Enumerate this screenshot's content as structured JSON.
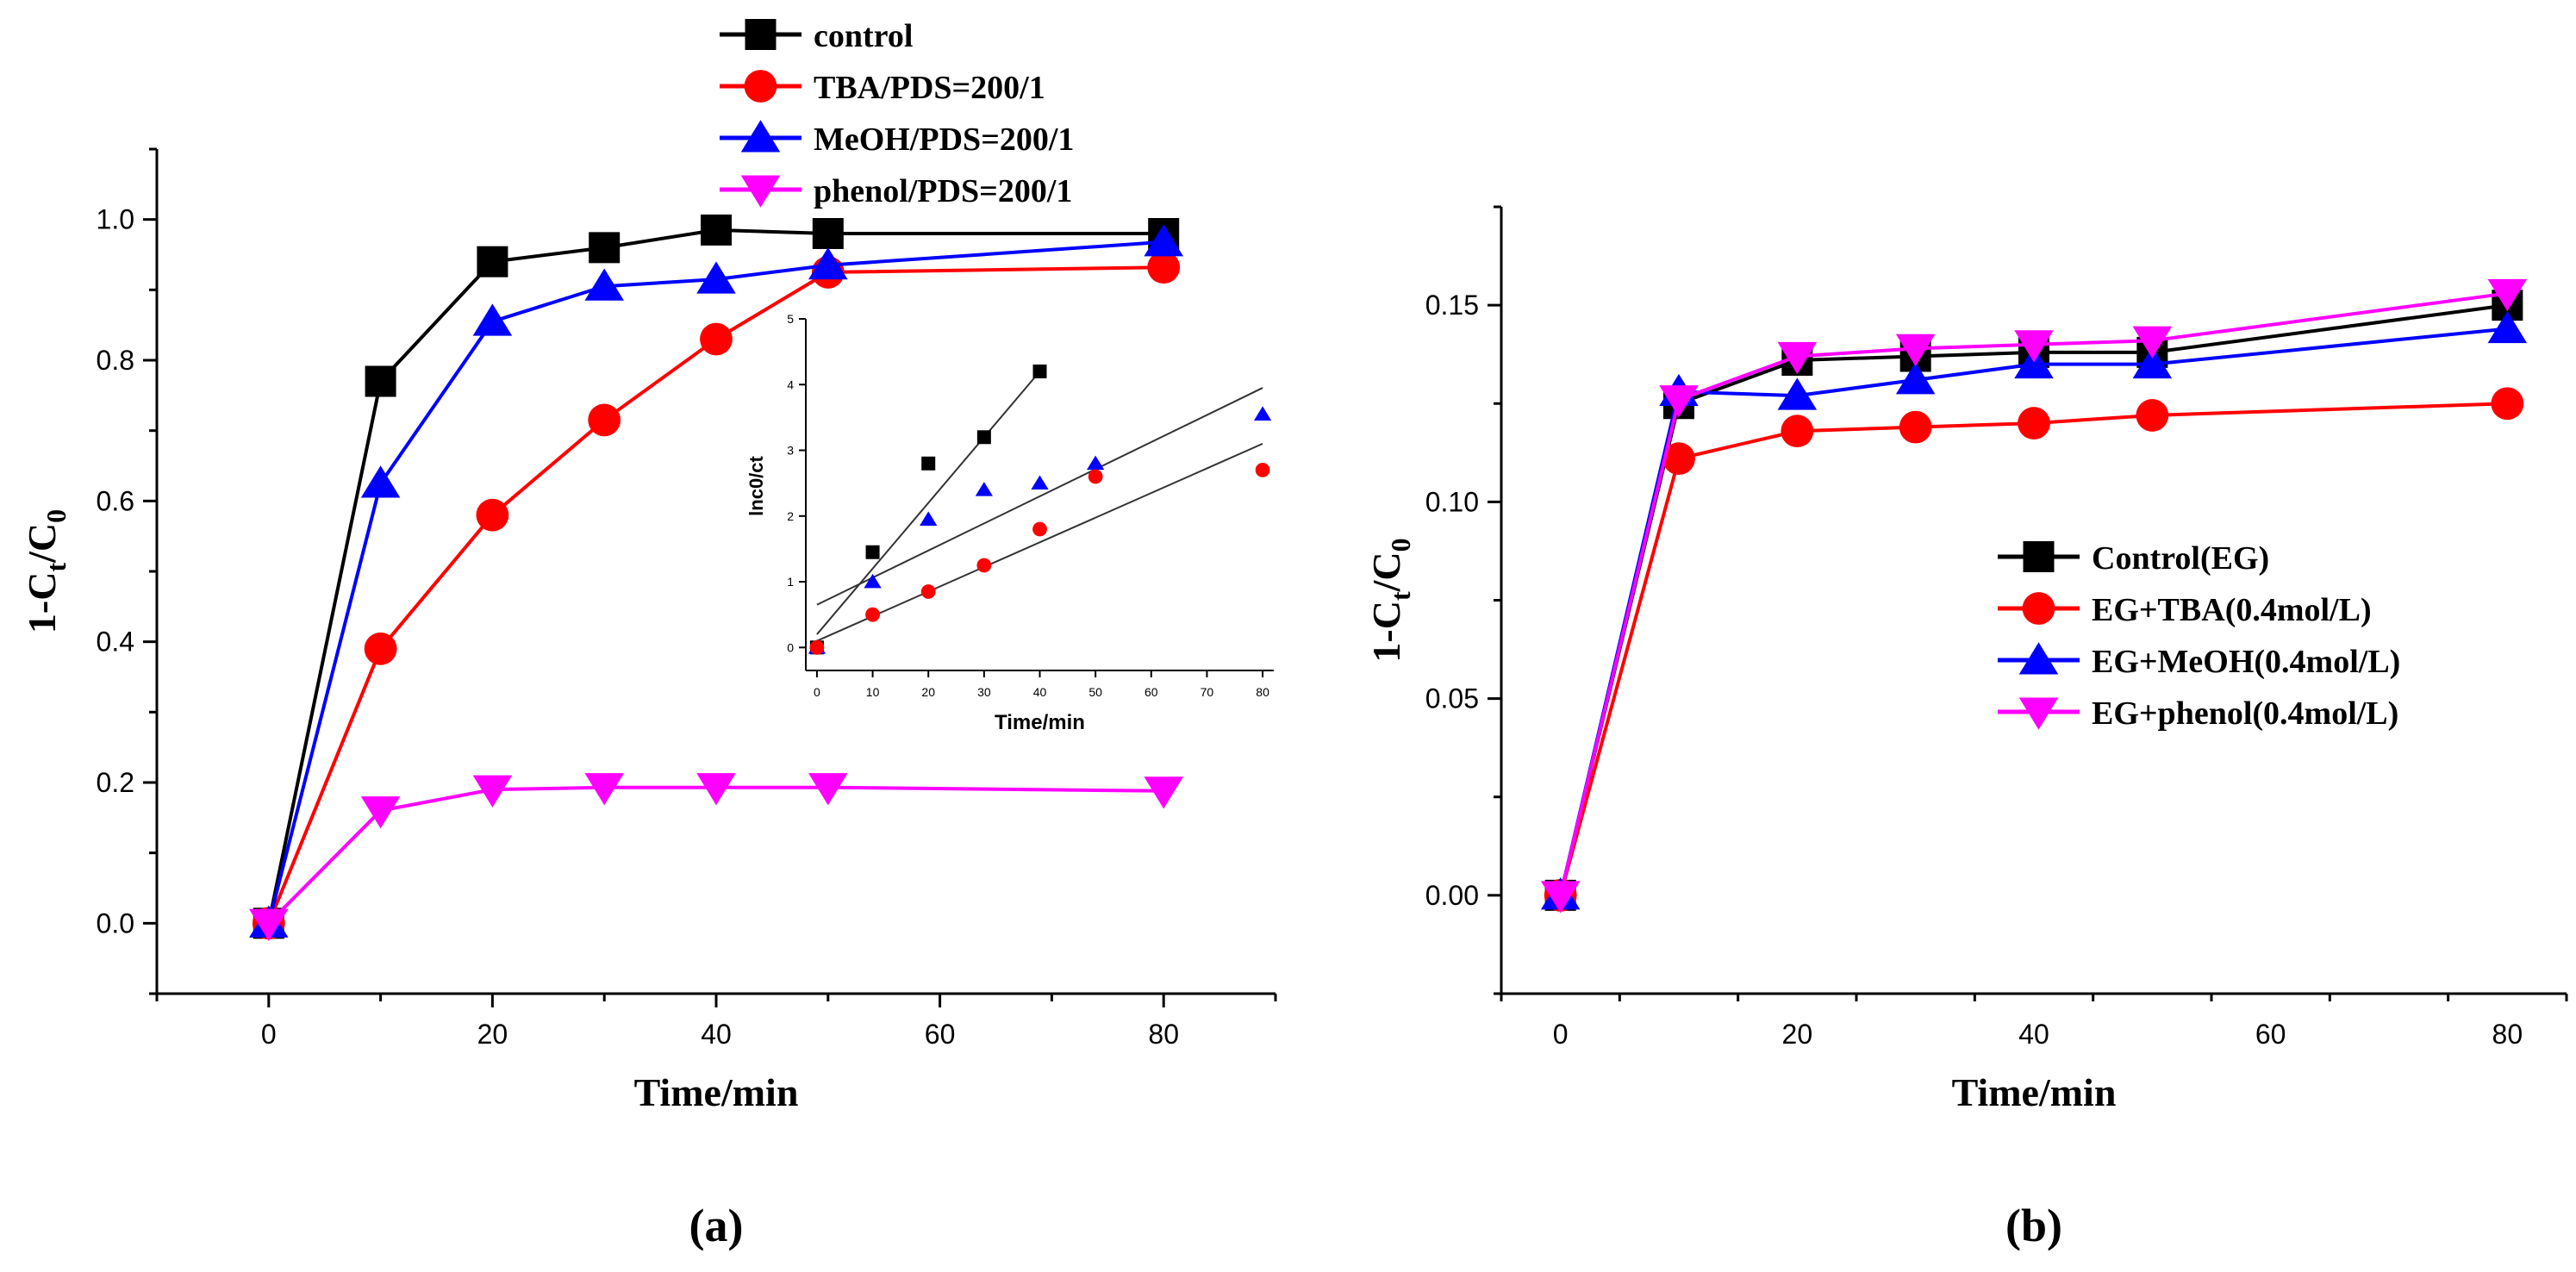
{
  "chart_data": [
    {
      "type": "line",
      "panel_label": "(a)",
      "xlabel": "Time/min",
      "ylabel_parts": {
        "a": "1-C",
        "b": "t",
        "c": "/C",
        "d": "0"
      },
      "xlim": [
        -10,
        90
      ],
      "ylim": [
        -0.1,
        1.1
      ],
      "xticks": [
        0,
        20,
        40,
        60,
        80
      ],
      "yticks": [
        0.0,
        0.2,
        0.4,
        0.6,
        0.8,
        1.0
      ],
      "ytick_labels": [
        "0.0",
        "0.2",
        "0.4",
        "0.6",
        "0.8",
        "1.0"
      ],
      "legend_position": "top-center",
      "series": [
        {
          "name": "control",
          "color": "#000000",
          "marker": "square",
          "x": [
            0,
            10,
            20,
            30,
            40,
            50,
            80
          ],
          "y": [
            0.0,
            0.77,
            0.94,
            0.96,
            0.985,
            0.98,
            0.98
          ]
        },
        {
          "name": "TBA/PDS=200/1",
          "color": "#ff0000",
          "marker": "circle",
          "x": [
            0,
            10,
            20,
            30,
            40,
            50,
            80
          ],
          "y": [
            0.0,
            0.39,
            0.58,
            0.715,
            0.83,
            0.925,
            0.932
          ]
        },
        {
          "name": "MeOH/PDS=200/1",
          "color": "#0000ff",
          "marker": "triangle-up",
          "x": [
            0,
            10,
            20,
            30,
            40,
            50,
            80
          ],
          "y": [
            0.0,
            0.625,
            0.855,
            0.905,
            0.915,
            0.935,
            0.968
          ]
        },
        {
          "name": "phenol/PDS=200/1",
          "color": "#ff00ff",
          "marker": "triangle-down",
          "x": [
            0,
            10,
            20,
            30,
            40,
            50,
            80
          ],
          "y": [
            0.0,
            0.16,
            0.19,
            0.193,
            0.193,
            0.193,
            0.188
          ]
        }
      ],
      "inset": {
        "type": "scatter",
        "xlabel": "Time/min",
        "ylabel": "lnc0/ct",
        "xlim": [
          -2,
          82
        ],
        "ylim": [
          -0.35,
          5
        ],
        "xticks": [
          0,
          10,
          20,
          30,
          40,
          50,
          60,
          70,
          80
        ],
        "yticks": [
          0,
          1,
          2,
          3,
          4,
          5
        ],
        "series": [
          {
            "color": "#000000",
            "marker": "square",
            "x": [
              0,
              10,
              20,
              30,
              40
            ],
            "y": [
              0,
              1.45,
              2.8,
              3.2,
              4.2
            ]
          },
          {
            "color": "#0000ff",
            "marker": "triangle-up",
            "x": [
              0,
              10,
              20,
              30,
              40,
              50,
              80
            ],
            "y": [
              0,
              1.0,
              1.95,
              2.4,
              2.5,
              2.8,
              3.55
            ]
          },
          {
            "color": "#ff0000",
            "marker": "circle",
            "x": [
              0,
              10,
              20,
              30,
              40,
              50,
              80
            ],
            "y": [
              0,
              0.5,
              0.85,
              1.25,
              1.8,
              2.6,
              2.7
            ]
          }
        ],
        "fit_lines": [
          {
            "x": [
              0,
              40
            ],
            "y": [
              0.2,
              4.2
            ]
          },
          {
            "x": [
              0,
              80
            ],
            "y": [
              0.65,
              3.95
            ]
          },
          {
            "x": [
              0,
              80
            ],
            "y": [
              0.1,
              3.1
            ]
          }
        ]
      }
    },
    {
      "type": "line",
      "panel_label": "(b)",
      "xlabel": "Time/min",
      "ylabel_parts": {
        "a": "1-C",
        "b": "t",
        "c": "/C",
        "d": "0"
      },
      "xlim": [
        -5,
        85
      ],
      "ylim": [
        -0.025,
        0.175
      ],
      "xticks": [
        0,
        20,
        40,
        60,
        80
      ],
      "yticks": [
        0.0,
        0.05,
        0.1,
        0.15
      ],
      "ytick_labels": [
        "0.00",
        "0.05",
        "0.10",
        "0.15"
      ],
      "legend_position": "center-right",
      "series": [
        {
          "name": "Control(EG)",
          "color": "#000000",
          "marker": "square",
          "x": [
            0,
            10,
            20,
            30,
            40,
            50,
            80
          ],
          "y": [
            0.0,
            0.125,
            0.136,
            0.137,
            0.138,
            0.138,
            0.15
          ]
        },
        {
          "name": "EG+TBA(0.4mol/L)",
          "color": "#ff0000",
          "marker": "circle",
          "x": [
            0,
            10,
            20,
            30,
            40,
            50,
            80
          ],
          "y": [
            0.0,
            0.111,
            0.118,
            0.119,
            0.12,
            0.122,
            0.125
          ]
        },
        {
          "name": "EG+MeOH(0.4mol/L)",
          "color": "#0000ff",
          "marker": "triangle-up",
          "x": [
            0,
            10,
            20,
            30,
            40,
            50,
            80
          ],
          "y": [
            0.0,
            0.128,
            0.127,
            0.131,
            0.135,
            0.135,
            0.144
          ]
        },
        {
          "name": "EG+phenol(0.4mol/L)",
          "color": "#ff00ff",
          "marker": "triangle-down",
          "x": [
            0,
            10,
            20,
            30,
            40,
            50,
            80
          ],
          "y": [
            0.0,
            0.126,
            0.137,
            0.139,
            0.14,
            0.141,
            0.153
          ]
        }
      ]
    }
  ]
}
